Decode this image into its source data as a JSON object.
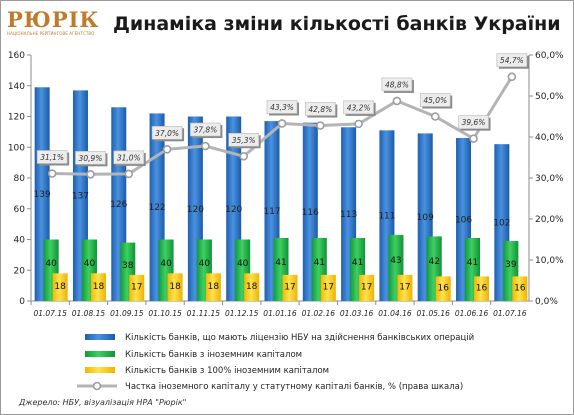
{
  "header": {
    "logo_text": "РЮРІК",
    "logo_subtitle": "НАЦІОНАЛЬНЕ РЕЙТИНГОВЕ АГЕНТСТВО",
    "title": "Динаміка зміни кількості банків України"
  },
  "source_note": "Джерело:  НБУ, візуалізація НРА \"Рюрік\"",
  "colors": {
    "licensed": "#2e74c8",
    "foreign": "#1fb34a",
    "full_foreign": "#ffd21f",
    "share_line": "#b4b4b4"
  },
  "chart_data": {
    "type": "bar",
    "categories": [
      "01.07.15",
      "01.08.15",
      "01.09.15",
      "01.10.15",
      "01.11.15",
      "01.12.15",
      "01.01.16",
      "01.02.16",
      "01.03.16",
      "01.04.16",
      "01.05.16",
      "01.06.16",
      "01.07.16"
    ],
    "series": [
      {
        "name": "Кількість банків, що мають ліцензію НБУ на здійснення банківських операцій",
        "type": "bar",
        "axis": "left",
        "values": [
          139,
          137,
          126,
          122,
          120,
          120,
          117,
          116,
          113,
          111,
          109,
          106,
          102
        ],
        "labels": [
          "139",
          "137",
          "126",
          "122",
          "120",
          "120",
          "117",
          "116",
          "113",
          "111",
          "109",
          "106",
          "102"
        ]
      },
      {
        "name": "Кількість банків з іноземним капіталом",
        "type": "bar",
        "axis": "left",
        "values": [
          40,
          40,
          38,
          40,
          40,
          40,
          41,
          41,
          41,
          43,
          42,
          41,
          39
        ],
        "labels": [
          "40",
          "40",
          "38",
          "40",
          "40",
          "40",
          "41",
          "41",
          "41",
          "43",
          "42",
          "41",
          "39"
        ]
      },
      {
        "name": "Кількість банків з 100% іноземним капіталом",
        "type": "bar",
        "axis": "left",
        "values": [
          18,
          18,
          17,
          18,
          18,
          18,
          17,
          17,
          17,
          17,
          16,
          16,
          16
        ],
        "labels": [
          "18",
          "18",
          "17",
          "18",
          "18",
          "18",
          "17",
          "17",
          "17",
          "17",
          "16",
          "16",
          "16"
        ]
      },
      {
        "name": "Частка іноземного капіталу у статутному капіталі банків, % (права шкала)",
        "type": "line",
        "axis": "right",
        "values": [
          31.1,
          30.9,
          31.0,
          37.0,
          37.8,
          35.3,
          43.3,
          42.8,
          43.2,
          48.8,
          45.0,
          39.6,
          54.7
        ],
        "labels": [
          "31,1%",
          "30,9%",
          "31,0%",
          "37,0%",
          "37,8%",
          "35,3%",
          "43,3%",
          "42,8%",
          "43,2%",
          "48,8%",
          "45,0%",
          "39,6%",
          "54,7%"
        ]
      }
    ],
    "y_left": {
      "min": 0,
      "max": 160,
      "ticks": [
        "0",
        "20",
        "40",
        "60",
        "80",
        "100",
        "120",
        "140",
        "160"
      ]
    },
    "y_right": {
      "min": 0,
      "max": 60,
      "ticks": [
        "0,0%",
        "10,0%",
        "20,0%",
        "30,0%",
        "40,0%",
        "50,0%",
        "60,0%"
      ]
    },
    "grid": false,
    "legend_position": "bottom"
  }
}
